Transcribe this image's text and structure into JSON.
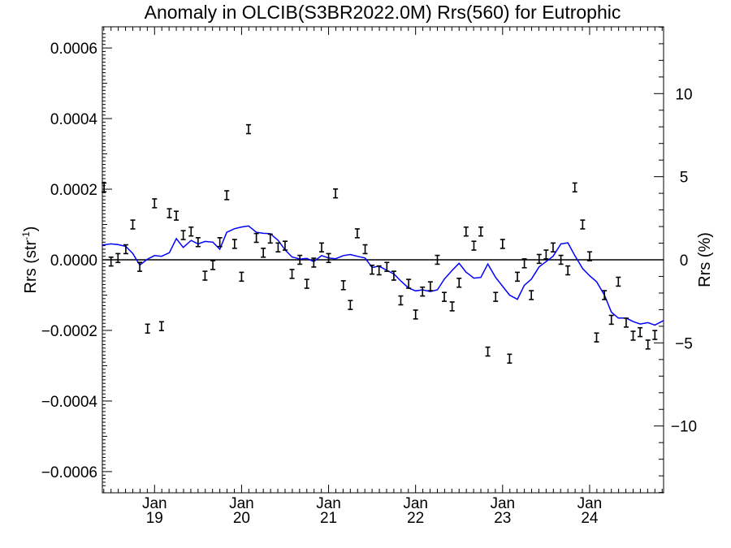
{
  "chart_data": {
    "type": "line",
    "title": "Anomaly in OLCIB(S3BR2022.0M) Rrs(560) for Eutrophic",
    "ylabel_main": "Rrs (str",
    "ylabel_sup": "-1",
    "ylabel_close": ")",
    "y2label": "Rrs (%)",
    "ylim": [
      -0.00066,
      0.00066
    ],
    "y2lim": [
      -14.02,
      14.02
    ],
    "xlim": [
      2018.4,
      2024.85
    ],
    "yticks": [
      {
        "value": 0.0006,
        "label": "0.0006"
      },
      {
        "value": 0.0004,
        "label": "0.0004"
      },
      {
        "value": 0.0002,
        "label": "0.0002"
      },
      {
        "value": 0.0,
        "label": "0.0000"
      },
      {
        "value": -0.0002,
        "label": "−0.0002"
      },
      {
        "value": -0.0004,
        "label": "−0.0004"
      },
      {
        "value": -0.0006,
        "label": "−0.0006"
      }
    ],
    "y2ticks": [
      {
        "value": 10,
        "label": "10"
      },
      {
        "value": 5,
        "label": "5"
      },
      {
        "value": 0,
        "label": "0"
      },
      {
        "value": -5,
        "label": "−5"
      },
      {
        "value": -10,
        "label": "−10"
      }
    ],
    "xticks": [
      {
        "value": 2019.0,
        "month": "Jan",
        "year": "19"
      },
      {
        "value": 2020.0,
        "month": "Jan",
        "year": "20"
      },
      {
        "value": 2021.0,
        "month": "Jan",
        "year": "21"
      },
      {
        "value": 2022.0,
        "month": "Jan",
        "year": "22"
      },
      {
        "value": 2023.0,
        "month": "Jan",
        "year": "23"
      },
      {
        "value": 2024.0,
        "month": "Jan",
        "year": "24"
      }
    ],
    "monthly_anomaly": {
      "x": [
        2018.42,
        2018.5,
        2018.58,
        2018.67,
        2018.75,
        2018.83,
        2018.92,
        2019.0,
        2019.08,
        2019.17,
        2019.25,
        2019.33,
        2019.42,
        2019.5,
        2019.58,
        2019.67,
        2019.75,
        2019.83,
        2019.92,
        2020.0,
        2020.08,
        2020.17,
        2020.25,
        2020.33,
        2020.42,
        2020.5,
        2020.58,
        2020.67,
        2020.75,
        2020.83,
        2020.92,
        2021.0,
        2021.08,
        2021.17,
        2021.25,
        2021.33,
        2021.42,
        2021.5,
        2021.58,
        2021.67,
        2021.75,
        2021.83,
        2021.92,
        2022.0,
        2022.08,
        2022.17,
        2022.25,
        2022.33,
        2022.42,
        2022.5,
        2022.58,
        2022.67,
        2022.75,
        2022.83,
        2022.92,
        2023.0,
        2023.08,
        2023.17,
        2023.25,
        2023.33,
        2023.42,
        2023.5,
        2023.58,
        2023.67,
        2023.75,
        2023.83,
        2023.92,
        2024.0,
        2024.08,
        2024.17,
        2024.25,
        2024.33,
        2024.42,
        2024.5,
        2024.58,
        2024.67,
        2024.75
      ],
      "y": [
        0.000205,
        -5e-06,
        5e-06,
        3e-05,
        0.0001,
        -2e-05,
        -0.000195,
        0.00016,
        -0.000188,
        0.000132,
        0.000125,
        7e-05,
        8e-05,
        5e-05,
        -4.5e-05,
        -1.5e-05,
        5e-05,
        0.000183,
        4.5e-05,
        -4.8e-05,
        0.00037,
        6.2e-05,
        2e-05,
        6e-05,
        3.5e-05,
        4e-05,
        -4e-05,
        0,
        -6.8e-05,
        -8e-06,
        3.5e-05,
        5e-06,
        0.000188,
        -7.2e-05,
        -0.000128,
        7.5e-05,
        3e-05,
        -2.8e-05,
        -3e-05,
        -2e-05,
        -4.5e-05,
        -0.000115,
        -6.8e-05,
        -0.000155,
        -9e-05,
        -7.5e-05,
        0,
        -0.000105,
        -0.000132,
        -6.5e-05,
        8e-05,
        4e-05,
        8e-05,
        -0.00026,
        -0.000105,
        4.5e-05,
        -0.00028,
        -4.8e-05,
        -1e-05,
        -0.0001,
        2.5e-06,
        1.5e-05,
        3.5e-05,
        0,
        -3e-05,
        0.000205,
        0.0001,
        1e-05,
        -0.00022,
        -0.0001,
        -0.00017,
        -6.2e-05,
        -0.000178,
        -0.000215,
        -0.000205,
        -0.00024,
        -0.000213
      ],
      "err": 1.25e-05
    },
    "running_mean": {
      "x": [
        2018.4,
        2018.5,
        2018.58,
        2018.67,
        2018.75,
        2018.83,
        2018.92,
        2019.0,
        2019.08,
        2019.17,
        2019.25,
        2019.33,
        2019.42,
        2019.5,
        2019.58,
        2019.67,
        2019.75,
        2019.83,
        2019.92,
        2020.0,
        2020.08,
        2020.17,
        2020.25,
        2020.33,
        2020.42,
        2020.5,
        2020.58,
        2020.67,
        2020.75,
        2020.83,
        2020.92,
        2021.0,
        2021.08,
        2021.17,
        2021.25,
        2021.33,
        2021.42,
        2021.5,
        2021.58,
        2021.67,
        2021.75,
        2021.83,
        2021.92,
        2022.0,
        2022.08,
        2022.17,
        2022.25,
        2022.33,
        2022.42,
        2022.5,
        2022.58,
        2022.67,
        2022.75,
        2022.83,
        2022.92,
        2023.0,
        2023.08,
        2023.17,
        2023.25,
        2023.33,
        2023.42,
        2023.5,
        2023.58,
        2023.67,
        2023.75,
        2023.83,
        2023.92,
        2024.0,
        2024.08,
        2024.17,
        2024.25,
        2024.33,
        2024.42,
        2024.5,
        2024.58,
        2024.67,
        2024.75,
        2024.85
      ],
      "y": [
        4.2e-05,
        4.5e-05,
        4.3e-05,
        3.8e-05,
        1.8e-05,
        -1.5e-05,
        2e-06,
        1.2e-05,
        1e-05,
        2e-05,
        6e-05,
        3.5e-05,
        5.5e-05,
        4.5e-05,
        5.2e-05,
        5e-05,
        3e-05,
        7.8e-05,
        8.8e-05,
        9.3e-05,
        9.6e-05,
        7.8e-05,
        7.5e-05,
        7.4e-05,
        5.5e-05,
        2.8e-05,
        8e-06,
        2e-06,
        4e-06,
        -5e-06,
        1.2e-05,
        5e-06,
        3e-06,
        1.2e-05,
        1.5e-05,
        1e-05,
        5e-06,
        -2.2e-05,
        -1.8e-05,
        -3e-05,
        -4e-05,
        -6e-05,
        -8e-05,
        -8.8e-05,
        -8.5e-05,
        -9e-05,
        -8.5e-05,
        -5.5e-05,
        -3e-05,
        -1e-05,
        -3.5e-05,
        -5.2e-05,
        -5e-05,
        -1.2e-05,
        -5e-05,
        -7.5e-05,
        -0.0001,
        -0.000112,
        -7.2e-05,
        -5.5e-05,
        -2e-05,
        -5e-06,
        1e-05,
        4.5e-05,
        4.8e-05,
        1.2e-05,
        -2.5e-05,
        -4.5e-05,
        -6.2e-05,
        -0.0001,
        -0.000148,
        -0.000165,
        -0.000165,
        -0.000175,
        -0.000182,
        -0.000178,
        -0.000185,
        -0.000172
      ]
    },
    "colors": {
      "running_mean": "#0000ff",
      "markers": "#000000",
      "zero_line": "#000000"
    },
    "grid": false
  }
}
